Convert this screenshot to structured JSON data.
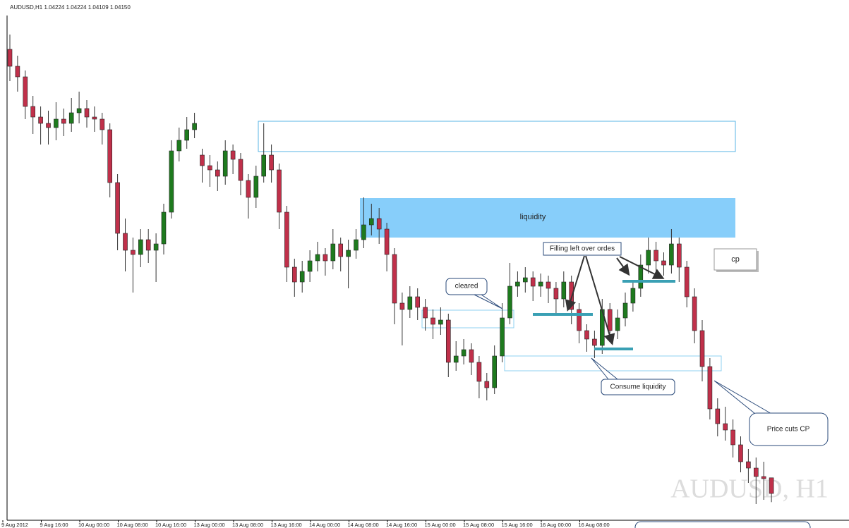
{
  "chart_data": {
    "type": "candlestick",
    "title": "AUDUSD,H1 1.04224 1.04224 1.04109 1.04150",
    "watermark": "AUDUSD, H1",
    "ylim": [
      1.04,
      1.064
    ],
    "up_color": "#1e7a1e",
    "down_color": "#c0304a",
    "time_labels": [
      "9 Aug 2012",
      "9 Aug 16:00",
      "10 Aug 00:00",
      "10 Aug 08:00",
      "10 Aug 16:00",
      "13 Aug 00:00",
      "13 Aug 08:00",
      "13 Aug 16:00",
      "14 Aug 00:00",
      "14 Aug 08:00",
      "14 Aug 16:00",
      "15 Aug 00:00",
      "15 Aug 08:00",
      "15 Aug 16:00",
      "16 Aug 00:00",
      "16 Aug 08:00"
    ],
    "annotations": {
      "liquidity": "liquidity",
      "cp": "cp",
      "filling": "Filling left over ordes",
      "cleared": "cleared",
      "consume": "Consume liquidity",
      "price_cuts": "Price cuts CP"
    },
    "open": [
      1.0625,
      1.0617,
      1.0612,
      1.0598,
      1.0593,
      1.059,
      1.0588,
      1.0592,
      1.059,
      1.0595,
      1.0597,
      1.0593,
      1.0592,
      1.0587,
      1.0562,
      1.0538,
      1.053,
      1.0528,
      1.0535,
      1.053,
      1.0533,
      1.0548,
      1.0577,
      1.0582,
      1.0587,
      1.0575,
      1.057,
      1.0568,
      1.0565,
      1.0577,
      1.0573,
      1.0563,
      1.0555,
      1.0565,
      1.0575,
      1.0568,
      1.0548,
      1.0522,
      1.0515,
      1.052,
      1.0525,
      1.0528,
      1.0525,
      1.0533,
      1.0527,
      1.053,
      1.0535,
      1.0542,
      1.0545,
      1.054,
      1.0528,
      1.0505,
      1.0502,
      1.0508,
      1.0503,
      1.0498,
      1.0495,
      1.0497,
      1.0477,
      1.048,
      1.0483,
      1.0477,
      1.0468,
      1.0465,
      1.048,
      1.0498,
      1.0513,
      1.0515,
      1.0517,
      1.0513,
      1.0515,
      1.0512,
      1.0507,
      1.0515,
      1.0502,
      1.0492,
      1.0488,
      1.0485,
      1.0502,
      1.0492,
      1.0498,
      1.0505,
      1.0512,
      1.0523,
      1.053,
      1.0525,
      1.0523,
      1.0533,
      1.0522,
      1.0508,
      1.0492,
      1.0475,
      1.0455,
      1.0448,
      1.0445,
      1.0438,
      1.043,
      1.0427,
      1.0423,
      1.04224
    ],
    "high": [
      1.0632,
      1.0622,
      1.0615,
      1.0603,
      1.0598,
      1.0596,
      1.06,
      1.0597,
      1.0602,
      1.0605,
      1.0601,
      1.0598,
      1.0595,
      1.059,
      1.0566,
      1.0545,
      1.0536,
      1.054,
      1.054,
      1.0538,
      1.0552,
      1.0582,
      1.0588,
      1.0593,
      1.0595,
      1.0578,
      1.0575,
      1.0572,
      1.0582,
      1.058,
      1.0576,
      1.0566,
      1.057,
      1.059,
      1.058,
      1.0571,
      1.0551,
      1.0526,
      1.0525,
      1.053,
      1.0534,
      1.0531,
      1.054,
      1.0536,
      1.0535,
      1.054,
      1.0555,
      1.0552,
      1.055,
      1.0543,
      1.0531,
      1.051,
      1.0513,
      1.0512,
      1.0507,
      1.0502,
      1.0503,
      1.05,
      1.0487,
      1.0488,
      1.0486,
      1.048,
      1.0472,
      1.0485,
      1.0505,
      1.0524,
      1.052,
      1.0522,
      1.052,
      1.0519,
      1.0518,
      1.0515,
      1.052,
      1.0518,
      1.0505,
      1.0495,
      1.0492,
      1.0507,
      1.0505,
      1.0502,
      1.051,
      1.0516,
      1.0528,
      1.0536,
      1.0534,
      1.0529,
      1.054,
      1.0536,
      1.0525,
      1.0512,
      1.0497,
      1.0479,
      1.046,
      1.0456,
      1.045,
      1.0442,
      1.0436,
      1.0432,
      1.043,
      1.04224
    ],
    "low": [
      1.061,
      1.0605,
      1.0592,
      1.0585,
      1.058,
      1.058,
      1.0582,
      1.0584,
      1.0586,
      1.059,
      1.0588,
      1.0586,
      1.058,
      1.0555,
      1.053,
      1.052,
      1.051,
      1.0522,
      1.0524,
      1.0515,
      1.0528,
      1.0545,
      1.0572,
      1.0578,
      1.0583,
      1.0562,
      1.056,
      1.0558,
      1.0561,
      1.0566,
      1.0556,
      1.0545,
      1.055,
      1.0562,
      1.0562,
      1.054,
      1.0515,
      1.0508,
      1.051,
      1.0515,
      1.052,
      1.0518,
      1.0521,
      1.052,
      1.0512,
      1.0526,
      1.0531,
      1.0537,
      1.0533,
      1.052,
      1.0495,
      1.0485,
      1.0498,
      1.0497,
      1.0492,
      1.0488,
      1.049,
      1.047,
      1.0473,
      1.0476,
      1.0471,
      1.046,
      1.0459,
      1.0462,
      1.0477,
      1.0495,
      1.0508,
      1.051,
      1.0506,
      1.0508,
      1.0505,
      1.05,
      1.0503,
      1.0495,
      1.0486,
      1.0482,
      1.0479,
      1.0481,
      1.0487,
      1.0488,
      1.0494,
      1.0501,
      1.0508,
      1.0519,
      1.052,
      1.0518,
      1.0519,
      1.0515,
      1.0503,
      1.0486,
      1.0468,
      1.045,
      1.0442,
      1.044,
      1.0432,
      1.0425,
      1.042,
      1.041,
      1.0412,
      1.04109
    ],
    "close": [
      1.0617,
      1.0612,
      1.0598,
      1.0593,
      1.059,
      1.0588,
      1.0592,
      1.059,
      1.0595,
      1.0597,
      1.0593,
      1.0592,
      1.0587,
      1.0562,
      1.0538,
      1.053,
      1.0528,
      1.0535,
      1.053,
      1.0533,
      1.0548,
      1.0577,
      1.0582,
      1.0587,
      1.059,
      1.057,
      1.0568,
      1.0565,
      1.0577,
      1.0573,
      1.0563,
      1.0555,
      1.0565,
      1.0575,
      1.0568,
      1.0548,
      1.0522,
      1.0515,
      1.052,
      1.0525,
      1.0528,
      1.0525,
      1.0533,
      1.0527,
      1.053,
      1.0535,
      1.0542,
      1.0545,
      1.054,
      1.0528,
      1.0505,
      1.0502,
      1.0508,
      1.0503,
      1.0498,
      1.0495,
      1.0497,
      1.0477,
      1.048,
      1.0483,
      1.0477,
      1.0468,
      1.0465,
      1.048,
      1.0498,
      1.0513,
      1.0515,
      1.0517,
      1.0513,
      1.0515,
      1.0512,
      1.0507,
      1.0515,
      1.0502,
      1.0492,
      1.0488,
      1.0485,
      1.0502,
      1.0492,
      1.0498,
      1.0505,
      1.0512,
      1.0523,
      1.053,
      1.0525,
      1.0523,
      1.0533,
      1.0522,
      1.0508,
      1.0492,
      1.0475,
      1.0455,
      1.0448,
      1.0445,
      1.0438,
      1.043,
      1.0427,
      1.0423,
      1.0422,
      1.0415
    ]
  }
}
